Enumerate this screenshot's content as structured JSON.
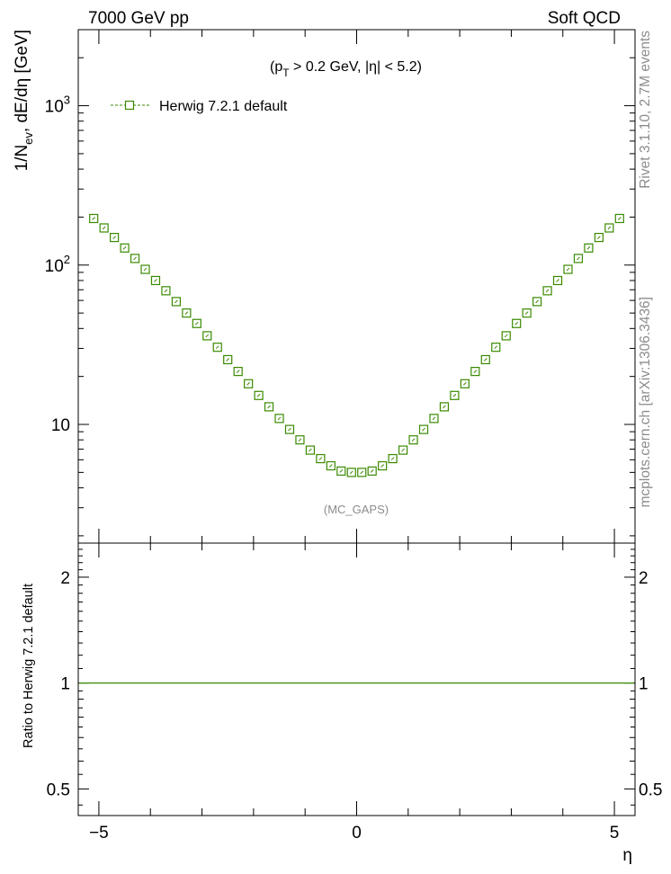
{
  "header": {
    "left": "7000 GeV pp",
    "right": "Soft QCD"
  },
  "side": {
    "rivet": "Rivet 3.1.10, 2.7M events",
    "mcplots": "mcplots.cern.ch [arXiv:1306.3436]"
  },
  "chart_data": [
    {
      "type": "scatter",
      "title": "",
      "annotation_cuts": {
        "prefix": "(p",
        "sub": "T",
        "suffix": " > 0.2 GeV, |η| < 5.2)"
      },
      "annotation_analysis": "(MC_GAPS)",
      "ylabel": {
        "prefix": "1/N",
        "sub": "ev",
        "suffix": ", dE/dη [GeV]"
      },
      "yscale": "log",
      "xlim": [
        -5.4,
        5.4
      ],
      "ylim": [
        1.8,
        3000
      ],
      "ytick_labels": [
        {
          "value": 10,
          "base": "10",
          "exp": ""
        },
        {
          "value": 100,
          "base": "10",
          "exp": "2"
        },
        {
          "value": 1000,
          "base": "10",
          "exp": "3"
        }
      ],
      "legend": {
        "position": "top-left",
        "entries": [
          "Herwig 7.2.1 default"
        ]
      },
      "color": "#3a8a00",
      "series": [
        {
          "name": "Herwig 7.2.1 default",
          "marker": "open-square",
          "x": [
            -5.1,
            -4.9,
            -4.7,
            -4.5,
            -4.3,
            -4.1,
            -3.9,
            -3.7,
            -3.5,
            -3.3,
            -3.1,
            -2.9,
            -2.7,
            -2.5,
            -2.3,
            -2.1,
            -1.9,
            -1.7,
            -1.5,
            -1.3,
            -1.1,
            -0.9,
            -0.7,
            -0.5,
            -0.3,
            -0.1,
            0.1,
            0.3,
            0.5,
            0.7,
            0.9,
            1.1,
            1.3,
            1.5,
            1.7,
            1.9,
            2.1,
            2.3,
            2.5,
            2.7,
            2.9,
            3.1,
            3.3,
            3.5,
            3.7,
            3.9,
            4.1,
            4.3,
            4.5,
            4.7,
            4.9,
            5.1
          ],
          "y": [
            196,
            171,
            149,
            128,
            110,
            94,
            80,
            69,
            59,
            50,
            43,
            36,
            30.5,
            25.5,
            21.5,
            18.0,
            15.2,
            12.9,
            10.9,
            9.3,
            8.0,
            6.9,
            6.1,
            5.5,
            5.1,
            5.0,
            5.0,
            5.1,
            5.5,
            6.1,
            6.9,
            8.0,
            9.3,
            10.9,
            12.9,
            15.2,
            18.0,
            21.5,
            25.5,
            30.5,
            36,
            43,
            50,
            59,
            69,
            80,
            94,
            110,
            128,
            149,
            171,
            196
          ]
        }
      ]
    },
    {
      "type": "line",
      "ylabel": "Ratio to Herwig 7.2.1 default",
      "xlabel": "η",
      "yscale": "log",
      "xlim": [
        -5.4,
        5.4
      ],
      "ylim": [
        0.42,
        2.5
      ],
      "xtick_labels": [
        {
          "value": -5,
          "label": "−5"
        },
        {
          "value": 0,
          "label": "0"
        },
        {
          "value": 5,
          "label": "5"
        }
      ],
      "ytick_labels": [
        {
          "value": 0.5,
          "label": "0.5"
        },
        {
          "value": 1,
          "label": "1"
        },
        {
          "value": 2,
          "label": "2"
        }
      ],
      "series": [
        {
          "name": "Herwig 7.2.1 default",
          "x": [
            -5.4,
            5.4
          ],
          "y": [
            1,
            1
          ]
        }
      ]
    }
  ]
}
